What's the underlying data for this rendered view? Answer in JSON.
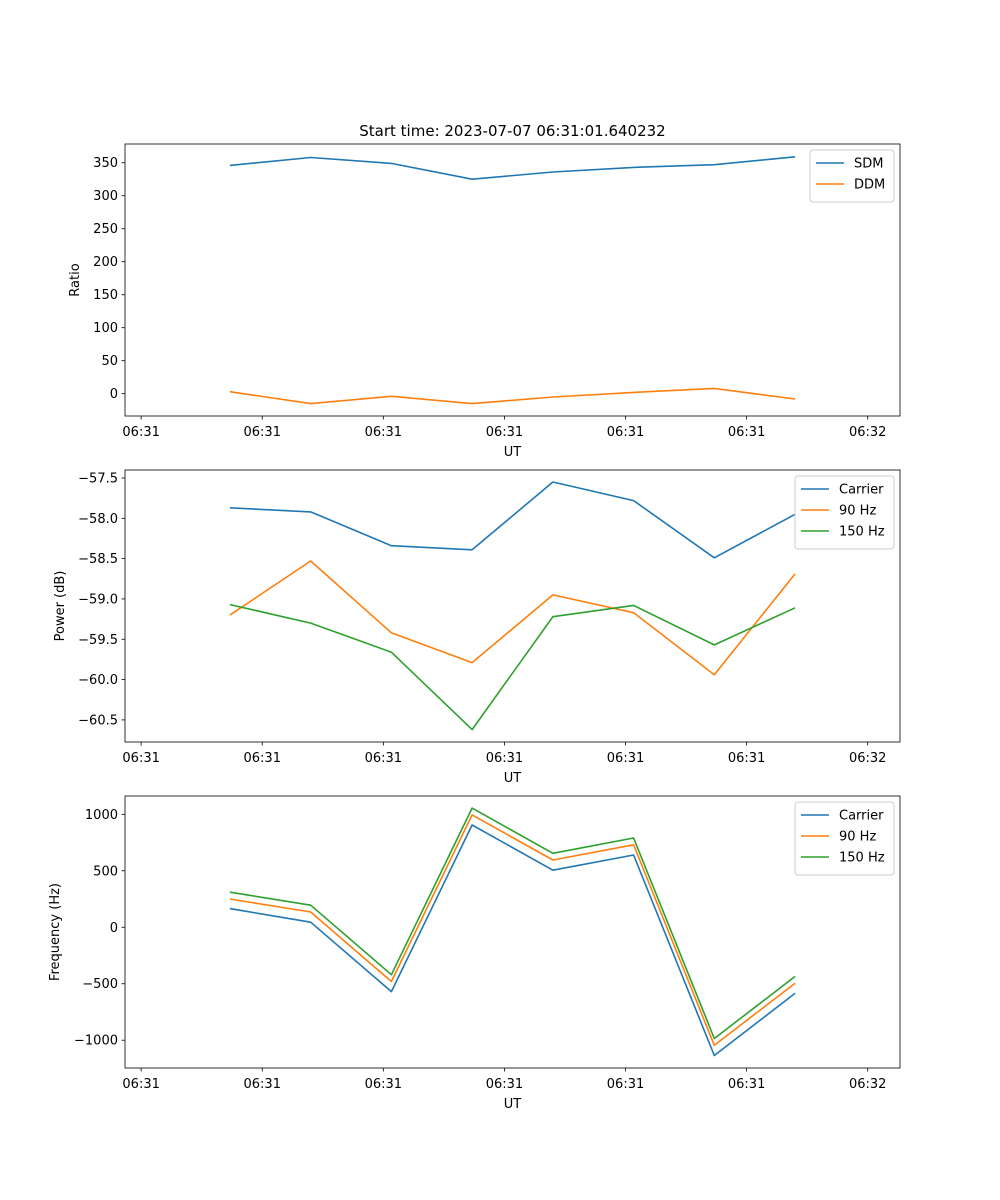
{
  "chart_data": [
    {
      "type": "line",
      "title": "Start time: 2023-07-07 06:31:01.640232",
      "xlabel": "UT",
      "ylabel": "Ratio",
      "x": [
        1.65,
        2.15,
        2.65,
        3.15,
        3.65,
        4.15,
        4.65,
        5.15
      ],
      "xlim": [
        1.0,
        5.8
      ],
      "xticks": [
        1.1,
        1.85,
        2.6,
        3.35,
        4.1,
        4.85,
        5.6
      ],
      "xticklabels": [
        "06:31",
        "06:31",
        "06:31",
        "06:31",
        "06:31",
        "06:31",
        "06:32"
      ],
      "ylim": [
        -33.8,
        378.4
      ],
      "yticks": [
        0,
        50,
        100,
        150,
        200,
        250,
        300,
        350
      ],
      "yticklabels": [
        "0",
        "50",
        "100",
        "150",
        "200",
        "250",
        "300",
        "350"
      ],
      "legend_position": "top-right",
      "series": [
        {
          "name": "SDM",
          "color": "#1f77b4",
          "values": [
            346,
            358,
            349,
            325,
            336,
            343,
            347,
            359
          ]
        },
        {
          "name": "DDM",
          "color": "#ff7f0e",
          "values": [
            3,
            -15,
            -4,
            -15,
            -5,
            2,
            8,
            -8
          ]
        }
      ]
    },
    {
      "type": "line",
      "title": "",
      "xlabel": "UT",
      "ylabel": "Power (dB)",
      "x": [
        1.65,
        2.15,
        2.65,
        3.15,
        3.65,
        4.15,
        4.65,
        5.15
      ],
      "xlim": [
        1.0,
        5.8
      ],
      "xticks": [
        1.1,
        1.85,
        2.6,
        3.35,
        4.1,
        4.85,
        5.6
      ],
      "xticklabels": [
        "06:31",
        "06:31",
        "06:31",
        "06:31",
        "06:31",
        "06:31",
        "06:32"
      ],
      "ylim": [
        -60.774,
        -57.401
      ],
      "yticks": [
        -60.5,
        -60.0,
        -59.5,
        -59.0,
        -58.5,
        -58.0,
        -57.5
      ],
      "yticklabels": [
        "−60.5",
        "−60.0",
        "−59.5",
        "−59.0",
        "−58.5",
        "−58.0",
        "−57.5"
      ],
      "legend_position": "top-right",
      "series": [
        {
          "name": "Carrier",
          "color": "#1f77b4",
          "values": [
            -57.87,
            -57.92,
            -58.34,
            -58.39,
            -57.55,
            -57.78,
            -58.49,
            -57.95
          ]
        },
        {
          "name": "90 Hz",
          "color": "#ff7f0e",
          "values": [
            -59.2,
            -58.53,
            -59.42,
            -59.79,
            -58.95,
            -59.17,
            -59.94,
            -58.69
          ]
        },
        {
          "name": "150 Hz",
          "color": "#2ca02c",
          "values": [
            -59.07,
            -59.3,
            -59.66,
            -60.62,
            -59.22,
            -59.08,
            -59.57,
            -59.11
          ]
        }
      ]
    },
    {
      "type": "line",
      "title": "",
      "xlabel": "UT",
      "ylabel": "Frequency (Hz)",
      "x": [
        1.65,
        2.15,
        2.65,
        3.15,
        3.65,
        4.15,
        4.65,
        5.15
      ],
      "xlim": [
        1.0,
        5.8
      ],
      "xticks": [
        1.1,
        1.85,
        2.6,
        3.35,
        4.1,
        4.85,
        5.6
      ],
      "xticklabels": [
        "06:31",
        "06:31",
        "06:31",
        "06:31",
        "06:31",
        "06:31",
        "06:32"
      ],
      "ylim": [
        -1246,
        1162
      ],
      "yticks": [
        -1000,
        -500,
        0,
        500,
        1000
      ],
      "yticklabels": [
        "−1000",
        "−500",
        "0",
        "500",
        "1000"
      ],
      "legend_position": "top-right",
      "series": [
        {
          "name": "Carrier",
          "color": "#1f77b4",
          "values": [
            165,
            45,
            -570,
            905,
            505,
            640,
            -1135,
            -585
          ]
        },
        {
          "name": "90 Hz",
          "color": "#ff7f0e",
          "values": [
            250,
            135,
            -480,
            995,
            595,
            730,
            -1045,
            -495
          ]
        },
        {
          "name": "150 Hz",
          "color": "#2ca02c",
          "values": [
            310,
            195,
            -420,
            1055,
            655,
            790,
            -985,
            -435
          ]
        }
      ]
    }
  ]
}
